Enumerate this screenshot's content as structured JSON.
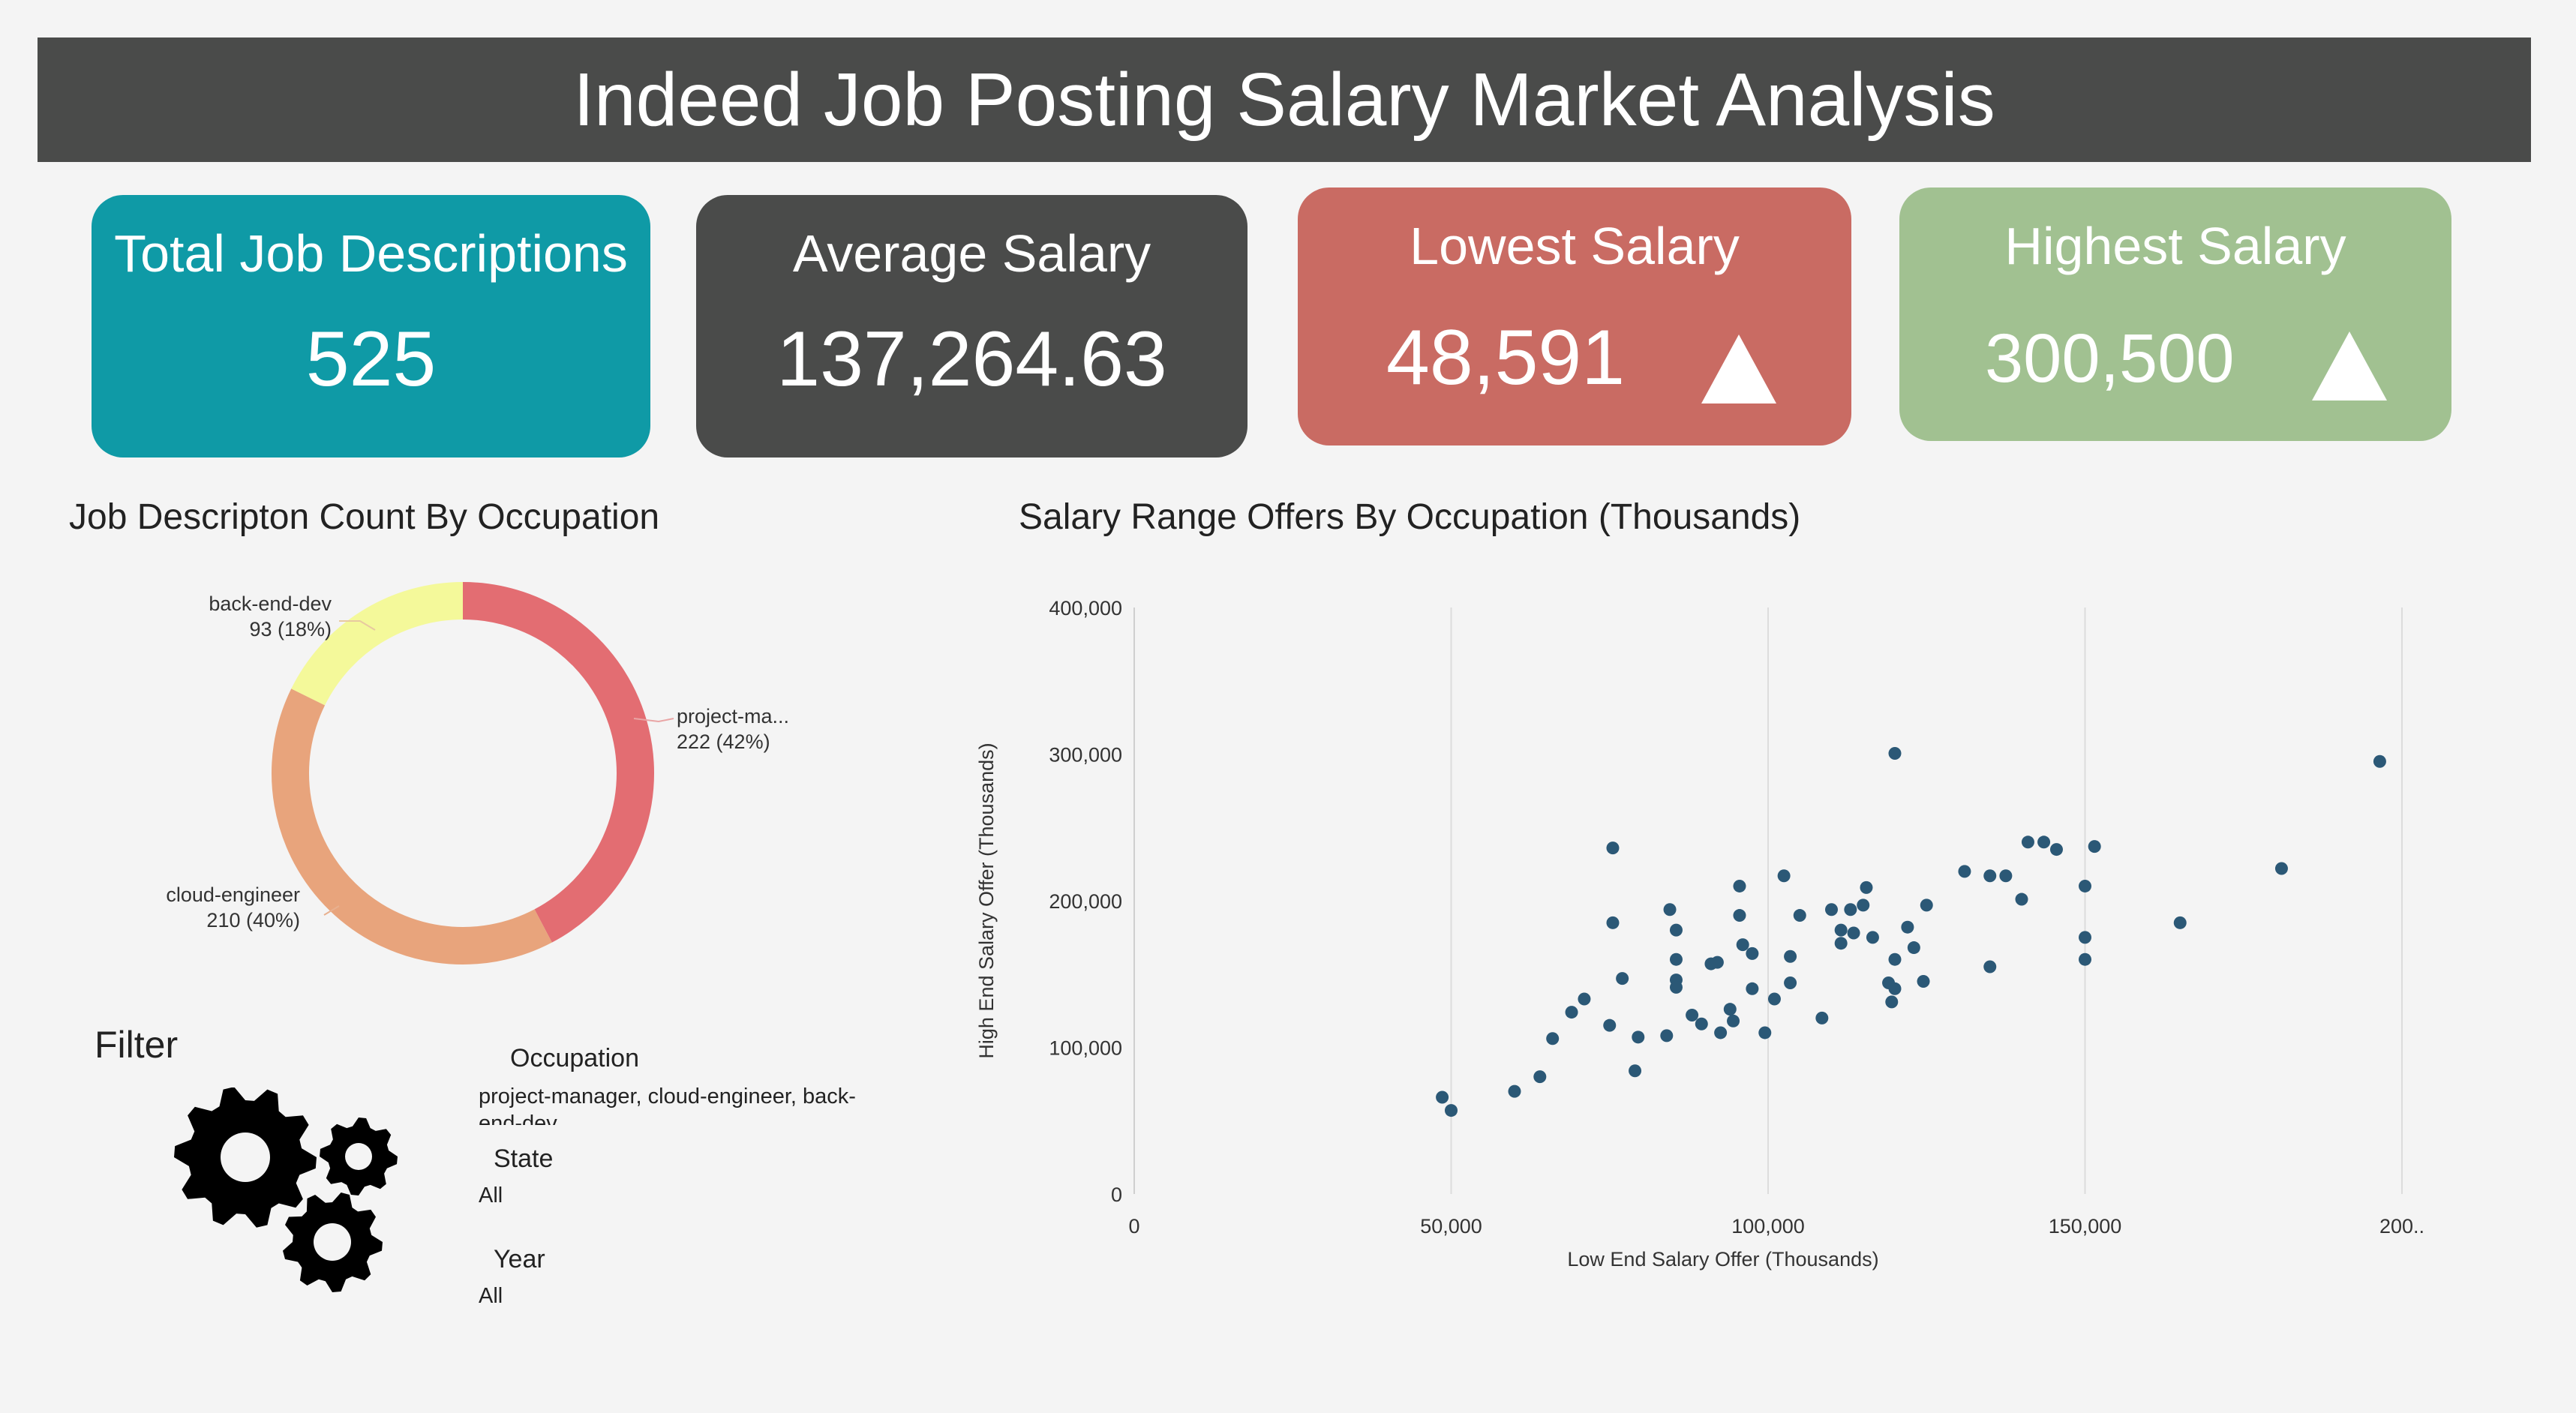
{
  "header": {
    "title": "Indeed Job Posting Salary Market Analysis"
  },
  "kpis": {
    "total": {
      "label": "Total Job Descriptions",
      "value": "525",
      "color": "#0f9aa6"
    },
    "average": {
      "label": "Average Salary",
      "value": "137,264.63",
      "color": "#4a4b4a"
    },
    "lowest": {
      "label": "Lowest Salary",
      "value": "48,591",
      "color": "#c96b63",
      "icon": "triangle-up-icon"
    },
    "highest": {
      "label": "Highest Salary",
      "value": "300,500",
      "color": "#a1c191",
      "icon": "triangle-up-icon"
    }
  },
  "donut": {
    "title": "Job Descripton Count By Occupation",
    "slices": [
      {
        "name": "project-ma...",
        "value_label": "222 (42%)",
        "count": 222,
        "color": "#e36d72"
      },
      {
        "name": "cloud-engineer",
        "value_label": "210 (40%)",
        "count": 210,
        "color": "#e8a47c"
      },
      {
        "name": "back-end-dev",
        "value_label": "93 (18%)",
        "count": 93,
        "color": "#f4f99a"
      }
    ]
  },
  "filter": {
    "title": "Filter",
    "icon": "gears-icon",
    "occupation": {
      "label": "Occupation",
      "value_line1": "project-manager, cloud-engineer, back-",
      "value_line2": "end-dev"
    },
    "state": {
      "label": "State",
      "value": "All"
    },
    "year": {
      "label": "Year",
      "value": "All"
    }
  },
  "chart_data": {
    "type": "scatter",
    "title": "Salary Range Offers By Occupation (Thousands)",
    "xlabel": "Low End Salary Offer (Thousands)",
    "ylabel": "High End Salary Offer (Thousands)",
    "xlim": [
      0,
      200000
    ],
    "ylim": [
      0,
      400000
    ],
    "xticks": [
      "0",
      "50,000",
      "100,000",
      "150,000",
      "200.."
    ],
    "yticks": [
      "0",
      "100,000",
      "200,000",
      "300,000",
      "400,000"
    ],
    "grid": "vertical",
    "color": "#2b5876",
    "points": [
      [
        48591,
        66000
      ],
      [
        50000,
        57000
      ],
      [
        60000,
        70000
      ],
      [
        64000,
        80000
      ],
      [
        66000,
        106000
      ],
      [
        69000,
        124000
      ],
      [
        71000,
        133000
      ],
      [
        75000,
        115000
      ],
      [
        75500,
        236000
      ],
      [
        75500,
        185000
      ],
      [
        77000,
        147000
      ],
      [
        79000,
        84000
      ],
      [
        79500,
        107000
      ],
      [
        84000,
        108000
      ],
      [
        84500,
        194000
      ],
      [
        85500,
        180000
      ],
      [
        85500,
        160000
      ],
      [
        85500,
        146000
      ],
      [
        85500,
        141000
      ],
      [
        88000,
        122000
      ],
      [
        89500,
        116000
      ],
      [
        91000,
        157000
      ],
      [
        92000,
        158000
      ],
      [
        92500,
        110000
      ],
      [
        94000,
        126000
      ],
      [
        94500,
        118000
      ],
      [
        95500,
        210000
      ],
      [
        95500,
        190000
      ],
      [
        96000,
        170000
      ],
      [
        97500,
        164000
      ],
      [
        97500,
        140000
      ],
      [
        99500,
        110000
      ],
      [
        101000,
        133000
      ],
      [
        102500,
        217000
      ],
      [
        103500,
        162000
      ],
      [
        103500,
        144000
      ],
      [
        105000,
        190000
      ],
      [
        108500,
        120000
      ],
      [
        110000,
        194000
      ],
      [
        111500,
        180000
      ],
      [
        111500,
        171000
      ],
      [
        113000,
        194000
      ],
      [
        113500,
        178000
      ],
      [
        115000,
        197000
      ],
      [
        115500,
        209000
      ],
      [
        116500,
        175000
      ],
      [
        119000,
        144000
      ],
      [
        119500,
        131000
      ],
      [
        120000,
        160000
      ],
      [
        120000,
        140000
      ],
      [
        120000,
        300500
      ],
      [
        122000,
        182000
      ],
      [
        123000,
        168000
      ],
      [
        124500,
        145000
      ],
      [
        125000,
        197000
      ],
      [
        131000,
        220000
      ],
      [
        135000,
        217000
      ],
      [
        135000,
        155000
      ],
      [
        137500,
        217000
      ],
      [
        140000,
        201000
      ],
      [
        141000,
        240000
      ],
      [
        143500,
        240000
      ],
      [
        145500,
        235000
      ],
      [
        150000,
        210000
      ],
      [
        150000,
        175000
      ],
      [
        150000,
        160000
      ],
      [
        151500,
        237000
      ],
      [
        165000,
        185000
      ],
      [
        181000,
        222000
      ],
      [
        196500,
        295000
      ]
    ]
  }
}
